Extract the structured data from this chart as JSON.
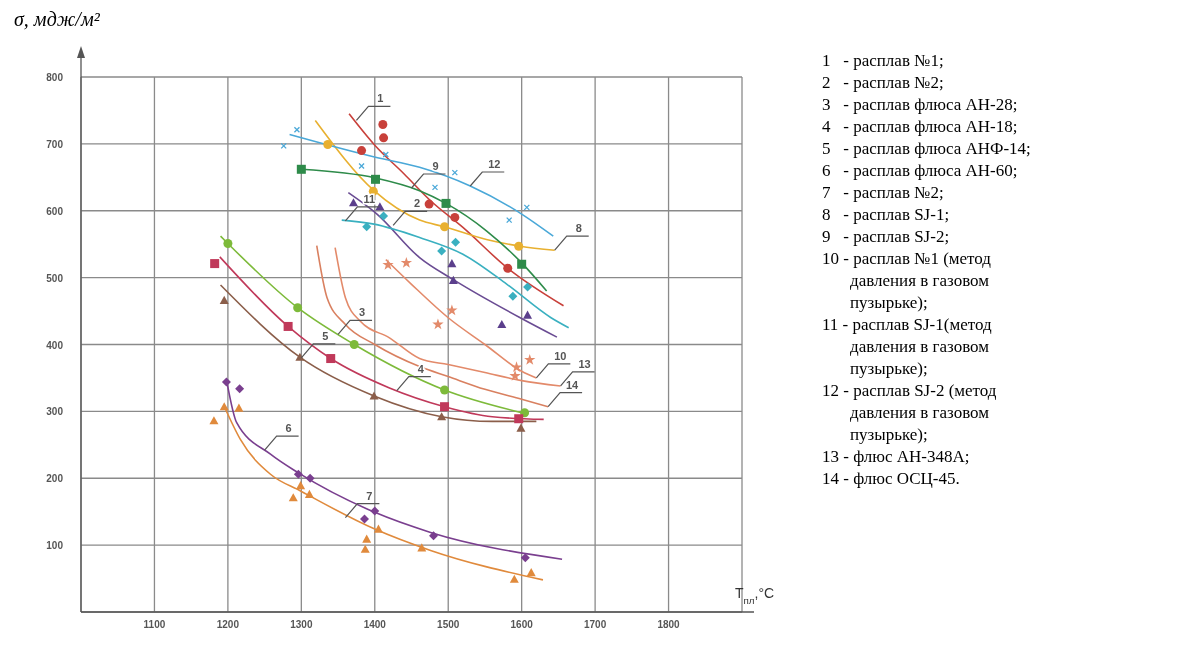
{
  "chart_data": {
    "type": "line",
    "ylabel": "σ, мдж/м²",
    "xlabel": "T$_{пл}$,°C",
    "xlim": [
      1000,
      1900
    ],
    "ylim": [
      0,
      800
    ],
    "xticks": [
      {
        "value": 1000,
        "label": null
      },
      1100,
      1200,
      1300,
      1400,
      1500,
      1600,
      1700,
      1800,
      {
        "value": 1900,
        "label": null
      }
    ],
    "yticks": [
      {
        "value": 0,
        "label": null
      },
      100,
      200,
      300,
      400,
      500,
      600,
      700,
      800
    ],
    "grid": true,
    "series": [
      {
        "type": "line",
        "color": "#c8403a",
        "x": [
          1365,
          1400,
          1440,
          1476,
          1520,
          1580,
          1657
        ],
        "values": [
          745,
          698,
          655,
          615,
          575,
          515,
          458
        ]
      },
      {
        "type": "line",
        "color": "#6a4c93",
        "x": [
          1364,
          1403,
          1461,
          1507,
          1598,
          1648
        ],
        "values": [
          627,
          595,
          530,
          497,
          440,
          411
        ]
      },
      {
        "type": "line",
        "color": "#7dba3a",
        "x": [
          1190,
          1200,
          1295,
          1372,
          1495,
          1600
        ],
        "values": [
          562,
          551,
          455,
          400,
          332,
          298
        ]
      },
      {
        "type": "line",
        "color": "#c0395a",
        "x": [
          1189,
          1282,
          1340,
          1420,
          1495,
          1560,
          1630
        ],
        "values": [
          531,
          427,
          379,
          335,
          307,
          292,
          288
        ]
      },
      {
        "type": "line",
        "color": "#8b5e4a",
        "x": [
          1190,
          1298,
          1399,
          1491,
          1560,
          1620
        ],
        "values": [
          489,
          381,
          323,
          292,
          285,
          285
        ]
      },
      {
        "type": "line",
        "color": "#7a3f8f",
        "x": [
          1199,
          1212,
          1258,
          1296,
          1400,
          1476,
          1655
        ],
        "values": [
          342,
          283,
          236,
          208,
          149,
          119,
          79
        ]
      },
      {
        "type": "line",
        "color": "#e08a3c",
        "x": [
          1196,
          1217,
          1258,
          1299,
          1400,
          1476,
          1629
        ],
        "values": [
          305,
          258,
          206,
          181,
          124,
          92,
          48
        ]
      },
      {
        "type": "line",
        "color": "#e8b030",
        "x": [
          1319,
          1399,
          1461,
          1495,
          1552,
          1598,
          1645
        ],
        "values": [
          735,
          630,
          586,
          576,
          557,
          547,
          541
        ]
      },
      {
        "type": "line",
        "color": "#2e8b4a",
        "x": [
          1300,
          1401,
          1461,
          1497,
          1552,
          1600,
          1634
        ],
        "values": [
          662,
          649,
          630,
          611,
          570,
          522,
          480
        ]
      },
      {
        "type": "line",
        "color": "#e38a6a",
        "x": [
          1415,
          1450,
          1500,
          1550,
          1600,
          1620
        ],
        "values": [
          527,
          490,
          440,
          400,
          360,
          350
        ]
      },
      {
        "type": "line",
        "color": "#3ab0c0",
        "x": [
          1355,
          1399,
          1461,
          1520,
          1580,
          1640,
          1664
        ],
        "values": [
          586,
          580,
          560,
          535,
          490,
          440,
          425
        ]
      },
      {
        "type": "line",
        "color": "#4aa8d8",
        "x": [
          1284,
          1401,
          1461,
          1530,
          1600,
          1643
        ],
        "values": [
          714,
          680,
          665,
          637,
          595,
          562
        ]
      },
      {
        "type": "line",
        "color": "#e38a6a",
        "x": [
          1346,
          1360,
          1380,
          1420,
          1461,
          1500,
          1550,
          1600,
          1653
        ],
        "values": [
          545,
          470,
          435,
          410,
          379,
          370,
          358,
          346,
          338
        ]
      },
      {
        "type": "line",
        "color": "#d98060",
        "x": [
          1321,
          1335,
          1360,
          1400,
          1461,
          1500,
          1550,
          1600,
          1636
        ],
        "values": [
          548,
          470,
          430,
          400,
          367,
          352,
          333,
          318,
          307
        ]
      },
      {
        "type": "scatter",
        "marker": "circle",
        "color": "#c8403a",
        "x": [
          1411,
          1412,
          1382,
          1474,
          1509,
          1581
        ],
        "values": [
          729,
          709,
          690,
          610,
          590,
          514
        ]
      },
      {
        "type": "scatter",
        "marker": "triangle",
        "color": "#5b3f8c",
        "x": [
          1371,
          1407,
          1505,
          1507,
          1573,
          1608
        ],
        "values": [
          612,
          606,
          521,
          496,
          430,
          444
        ]
      },
      {
        "type": "scatter",
        "marker": "circle",
        "color": "#7dba3a",
        "x": [
          1200,
          1295,
          1372,
          1495,
          1604
        ],
        "values": [
          551,
          455,
          400,
          332,
          298
        ]
      },
      {
        "type": "scatter",
        "marker": "square",
        "color": "#c0395a",
        "x": [
          1182,
          1282,
          1340,
          1495,
          1596
        ],
        "values": [
          521,
          427,
          379,
          307,
          289
        ]
      },
      {
        "type": "scatter",
        "marker": "triangle",
        "color": "#8b5e4a",
        "x": [
          1195,
          1298,
          1399,
          1491,
          1599
        ],
        "values": [
          466,
          381,
          323,
          292,
          275
        ]
      },
      {
        "type": "scatter",
        "marker": "diamond",
        "color": "#7a3f8f",
        "x": [
          1198,
          1216,
          1296,
          1312,
          1386,
          1400,
          1480,
          1605
        ],
        "values": [
          344,
          334,
          206,
          200,
          139,
          151,
          114,
          81
        ]
      },
      {
        "type": "scatter",
        "marker": "triangle",
        "color": "#e08a3c",
        "x": [
          1181,
          1195,
          1215,
          1289,
          1299,
          1311,
          1387,
          1389,
          1405,
          1464,
          1590,
          1613
        ],
        "values": [
          286,
          307,
          305,
          171,
          189,
          176,
          94,
          109,
          124,
          96,
          49,
          59
        ]
      },
      {
        "type": "scatter",
        "marker": "circle",
        "color": "#e8b030",
        "x": [
          1336,
          1398,
          1495,
          1596
        ],
        "values": [
          699,
          629,
          576,
          547
        ]
      },
      {
        "type": "scatter",
        "marker": "square",
        "color": "#2e8b4a",
        "x": [
          1300,
          1401,
          1497,
          1600
        ],
        "values": [
          662,
          647,
          611,
          520
        ]
      },
      {
        "type": "scatter",
        "marker": "star",
        "color": "#e38a6a",
        "x": [
          1418,
          1443,
          1486,
          1505,
          1591,
          1593,
          1611
        ],
        "values": [
          519,
          522,
          430,
          451,
          353,
          366,
          377
        ]
      },
      {
        "type": "scatter",
        "marker": "diamond",
        "color": "#3ab0c0",
        "x": [
          1389,
          1412,
          1491,
          1510,
          1588,
          1608
        ],
        "values": [
          576,
          592,
          540,
          553,
          472,
          486
        ]
      },
      {
        "type": "scatter",
        "marker": "cross",
        "color": "#4aa8d8",
        "x": [
          1276,
          1294,
          1382,
          1415,
          1482,
          1509,
          1583,
          1607
        ],
        "values": [
          697,
          721,
          667,
          684,
          635,
          657,
          586,
          605
        ]
      }
    ],
    "annotations": [
      {
        "text": "1",
        "x": 1375,
        "y": 735
      },
      {
        "text": "2",
        "x": 1425,
        "y": 578
      },
      {
        "text": "3",
        "x": 1350,
        "y": 415
      },
      {
        "text": "4",
        "x": 1430,
        "y": 331
      },
      {
        "text": "5",
        "x": 1300,
        "y": 380
      },
      {
        "text": "6",
        "x": 1250,
        "y": 242
      },
      {
        "text": "7",
        "x": 1360,
        "y": 141
      },
      {
        "text": "8",
        "x": 1645,
        "y": 541
      },
      {
        "text": "9",
        "x": 1450,
        "y": 634
      },
      {
        "text": "10",
        "x": 1620,
        "y": 350
      },
      {
        "text": "11",
        "x": 1360,
        "y": 585
      },
      {
        "text": "12",
        "x": 1530,
        "y": 637
      },
      {
        "text": "13",
        "x": 1653,
        "y": 338
      },
      {
        "text": "14",
        "x": 1636,
        "y": 307
      },
      "1   - расплав №1;",
      "2   - расплав №2;",
      "3   - расплав флюса АН-28;",
      "4   - расплав флюса АН-18;",
      "5   - расплав флюса АНФ-14;",
      "6   - расплав флюса АН-60;",
      "7   - расплав №2;",
      "8   - расплав SJ-1;",
      "9   - расплав SJ-2;",
      "10 - расплав №1 (метод давления в газовом пузырьке);",
      "11 - расплав SJ-1(метод давления в газовом пузырьке);",
      "12 - расплав SJ-2 (метод давления в газовом пузырьке);",
      "13 - флюс АН-348А;",
      "14 - флюс ОСЦ-45."
    ]
  }
}
